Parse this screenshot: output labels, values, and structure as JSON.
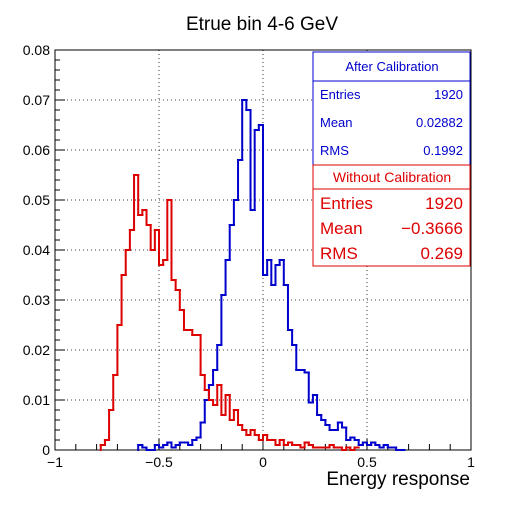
{
  "chart_data": {
    "type": "histogram",
    "title": "Etrue bin 4-6 GeV",
    "xlabel": "Energy response",
    "ylabel": "",
    "xlim": [
      -1,
      1
    ],
    "ylim": [
      0,
      0.08
    ],
    "bin_width": 0.02,
    "x_ticks": [
      "−1",
      "−0.5",
      "0",
      "0.5",
      "1"
    ],
    "x_tick_values": [
      -1,
      -0.5,
      0,
      0.5,
      1
    ],
    "y_ticks": [
      "0",
      "0.01",
      "0.02",
      "0.03",
      "0.04",
      "0.05",
      "0.06",
      "0.07",
      "0.08"
    ],
    "y_tick_values": [
      0,
      0.01,
      0.02,
      0.03,
      0.04,
      0.05,
      0.06,
      0.07,
      0.08
    ],
    "grid": true,
    "series": [
      {
        "name": "After Calibration",
        "color": "#0000cc",
        "x_start": -0.6,
        "values": [
          0.001,
          0.0005,
          0,
          0,
          0.001,
          0.0005,
          0.001,
          0.0015,
          0.0005,
          0.001,
          0.0015,
          0.0015,
          0.001,
          0.002,
          0.0025,
          0.0055,
          0.01,
          0.013,
          0.016,
          0.021,
          0.031,
          0.038,
          0.045,
          0.05,
          0.058,
          0.07,
          0.068,
          0.048,
          0.064,
          0.065,
          0.035,
          0.038,
          0.033,
          0.037,
          0.038,
          0.033,
          0.024,
          0.021,
          0.016,
          0.016,
          0.0155,
          0.0095,
          0.011,
          0.007,
          0.006,
          0.005,
          0.004,
          0.004,
          0.0055,
          0.0045,
          0.002,
          0.0025,
          0.002,
          0.001,
          0.0015,
          0.001,
          0.0015,
          0.001,
          0.0005,
          0.001,
          0.0005,
          0.0005,
          0,
          0
        ]
      },
      {
        "name": "Without Calibration",
        "color": "#dd0000",
        "x_start": -0.78,
        "values": [
          0.001,
          0.002,
          0.008,
          0.015,
          0.025,
          0.035,
          0.04,
          0.044,
          0.055,
          0.047,
          0.048,
          0.045,
          0.04,
          0.044,
          0.037,
          0.038,
          0.05,
          0.034,
          0.032,
          0.028,
          0.024,
          0.024,
          0.023,
          0.023,
          0.015,
          0.012,
          0.01,
          0.009,
          0.013,
          0.007,
          0.011,
          0.006,
          0.008,
          0.005,
          0.004,
          0.003,
          0.004,
          0.003,
          0.002,
          0.003,
          0.002,
          0.002,
          0.001,
          0.002,
          0.001,
          0.0015,
          0.001,
          0.001,
          0.0005,
          0.0015,
          0.001,
          0.0005,
          0.0005,
          0.0005,
          0.0005,
          0.001,
          0.0005,
          0.0005,
          0,
          0.0005,
          0,
          0.0005
        ]
      }
    ]
  },
  "stats": {
    "after": {
      "title": "After Calibration",
      "rows": [
        {
          "label": "Entries",
          "value": "1920"
        },
        {
          "label": "Mean",
          "value": "0.02882"
        },
        {
          "label": "RMS",
          "value": "0.1992"
        }
      ],
      "color": "#0000cc"
    },
    "without": {
      "title": "Without Calibration",
      "rows": [
        {
          "label": "Entries",
          "value": "1920"
        },
        {
          "label": "Mean",
          "value": "−0.3666"
        },
        {
          "label": "RMS",
          "value": "0.269"
        }
      ],
      "color": "#dd0000"
    }
  }
}
